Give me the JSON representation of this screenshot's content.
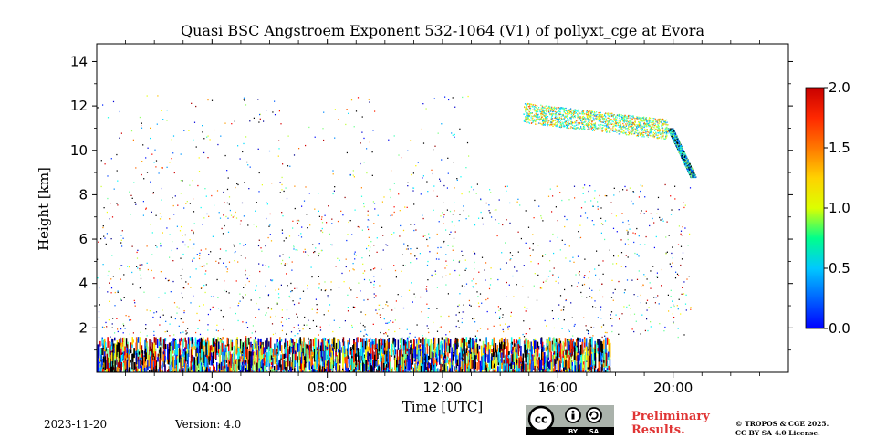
{
  "chart_data": {
    "type": "heatmap",
    "title": "Quasi BSC Angstroem Exponent 532-1064 (V1) of pollyxt_cge at Evora",
    "xlabel": "Time [UTC]",
    "ylabel": "Height [km]",
    "xlim_hours": [
      0,
      24
    ],
    "ylim_km": [
      0,
      14.8
    ],
    "x_tick_labels": [
      "04:00",
      "08:00",
      "12:00",
      "16:00",
      "20:00"
    ],
    "x_tick_values": [
      4,
      8,
      12,
      16,
      20
    ],
    "y_ticks": [
      2,
      4,
      6,
      8,
      10,
      12,
      14
    ],
    "colorbar": {
      "min": 0.0,
      "max": 2.0,
      "ticks": [
        "0.0",
        "0.5",
        "1.0",
        "1.5",
        "2.0"
      ],
      "tick_values": [
        0.0,
        0.5,
        1.0,
        1.5,
        2.0
      ],
      "colormap": "jet"
    },
    "regions": [
      {
        "name": "near-surface noisy layer",
        "t_start": 0.0,
        "t_end": 17.8,
        "h_min": 0.0,
        "h_max": 1.6,
        "density": "high",
        "value_range": [
          0.0,
          2.0
        ]
      },
      {
        "name": "sparse noise field",
        "t_start": 0.0,
        "t_end": 20.6,
        "h_min": 1.6,
        "h_max": 8.5,
        "density": "medium",
        "value_range": [
          0.0,
          2.0
        ]
      },
      {
        "name": "upper sparse noise",
        "t_start": 0.0,
        "t_end": 13.0,
        "h_min": 8.5,
        "h_max": 12.5,
        "density": "low",
        "value_range": [
          0.0,
          2.0
        ]
      },
      {
        "name": "high cloud layer",
        "t_start": 14.8,
        "t_end": 19.8,
        "h_min": 10.4,
        "h_max": 12.4,
        "density": "medium",
        "value_range": [
          0.5,
          1.6
        ]
      },
      {
        "name": "descending cloud",
        "t_start": 19.8,
        "t_end": 20.8,
        "h_min": 8.8,
        "h_max": 11.0,
        "density": "high",
        "value_range": [
          0.3,
          1.2
        ]
      }
    ]
  },
  "footer": {
    "date": "2023-11-20",
    "version": "Version: 4.0",
    "preliminary": "Preliminary Results.",
    "license_line1": "© TROPOS & CGE 2025.",
    "license_line2": "CC BY SA 4.0 License.",
    "cc_badge": {
      "cc": "cc",
      "by": "BY",
      "sa": "SA"
    }
  }
}
